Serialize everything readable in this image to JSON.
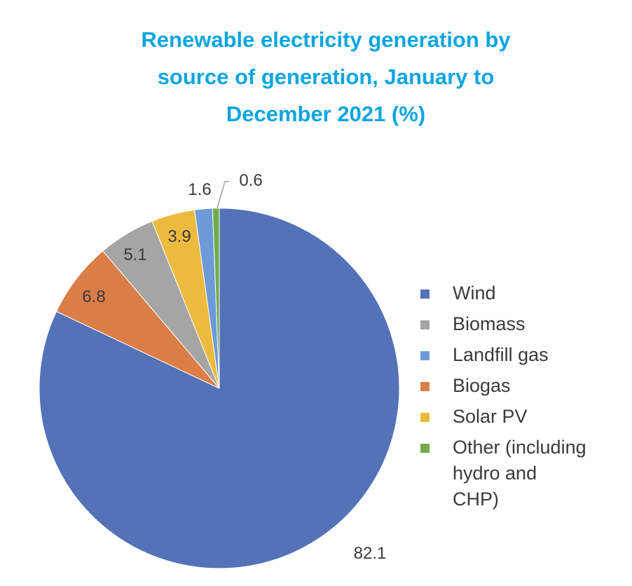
{
  "chart_data": {
    "type": "pie",
    "title_lines": [
      "Renewable electricity generation by",
      "source of generation, January to",
      "December 2021 (%)"
    ],
    "title_color": "#0aa5e0",
    "slices": [
      {
        "name": "Wind",
        "value": 82.1,
        "label": "82.1",
        "color": "#5472b8"
      },
      {
        "name": "Biogas",
        "value": 6.8,
        "label": "6.8",
        "color": "#db7d46"
      },
      {
        "name": "Biomass",
        "value": 5.1,
        "label": "5.1",
        "color": "#a5a5a5"
      },
      {
        "name": "Solar PV",
        "value": 3.9,
        "label": "3.9",
        "color": "#ecbb3d"
      },
      {
        "name": "Landfill gas",
        "value": 1.6,
        "label": "1.6",
        "color": "#6d9ad8"
      },
      {
        "name": "Other (including hydro and CHP)",
        "value": 0.6,
        "label": "0.6",
        "color": "#72ab4c"
      }
    ],
    "legend": [
      {
        "lines": [
          "Wind"
        ],
        "color": "#5472b8"
      },
      {
        "lines": [
          "Biomass"
        ],
        "color": "#a5a5a5"
      },
      {
        "lines": [
          "Landfill gas"
        ],
        "color": "#6d9ad8"
      },
      {
        "lines": [
          "Biogas"
        ],
        "color": "#db7d46"
      },
      {
        "lines": [
          "Solar PV"
        ],
        "color": "#ecbb3d"
      },
      {
        "lines": [
          "Other (including",
          "hydro and",
          "CHP)"
        ],
        "color": "#72ab4c"
      }
    ],
    "legend_position": "right"
  }
}
